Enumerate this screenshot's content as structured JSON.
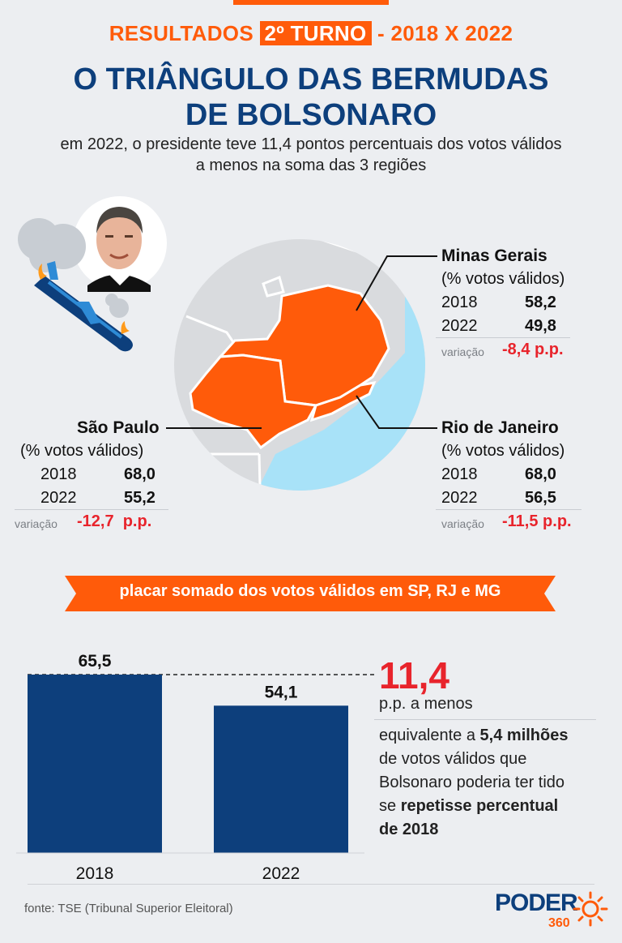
{
  "header": {
    "kicker_pre": "RESULTADOS ",
    "kicker_highlight": "2º TURNO",
    "kicker_post": " - 2018 X 2022",
    "title_line1": "O TRIÂNGULO DAS BERMUDAS",
    "title_line2": "DE BOLSONARO",
    "subtitle_line1": "em 2022, o presidente teve 11,4 pontos percentuais dos votos válidos",
    "subtitle_line2": "a menos na soma das 3 regiões"
  },
  "regions": {
    "mg": {
      "name": "Minas Gerais",
      "sub": "(% votos válidos)",
      "y1_label": "2018",
      "y1_value": "58,2",
      "y2_label": "2022",
      "y2_value": "49,8",
      "var_label": "variação",
      "var_value": "-8,4 p.p."
    },
    "sp": {
      "name": "São Paulo",
      "sub": "(% votos válidos)",
      "y1_label": "2018",
      "y1_value": "68,0",
      "y2_label": "2022",
      "y2_value": "55,2",
      "var_label": "variação",
      "var_value": "-12,7  p.p."
    },
    "rj": {
      "name": "Rio de Janeiro",
      "sub": "(% votos válidos)",
      "y1_label": "2018",
      "y1_value": "68,0",
      "y2_label": "2022",
      "y2_value": "56,5",
      "var_label": "variação",
      "var_value": "-11,5 p.p."
    }
  },
  "banner": {
    "text": "placar somado dos votos válidos em SP, RJ e MG"
  },
  "chart_data": {
    "type": "bar",
    "categories": [
      "2018",
      "2022"
    ],
    "values": [
      65.5,
      54.1
    ],
    "value_labels": [
      "65,5",
      "54,1"
    ],
    "ylim": [
      0,
      65.5
    ],
    "grid": false,
    "color": "#0d3f7c"
  },
  "callout": {
    "big_number": "11,4",
    "unit": "p.p. a menos",
    "note_1": "equivalente a ",
    "note_2": "5,4 milhões",
    "note_3": "de votos válidos que",
    "note_4": "Bolsonaro poderia ter tido",
    "note_5": "se ",
    "note_6": "repetisse percentual",
    "note_7": "de 2018"
  },
  "footer": {
    "source": "fonte: TSE (Tribunal Superior Eleitoral)",
    "logo": "PODER",
    "logo_sub": "360"
  },
  "colors": {
    "accent": "#ff5b0a",
    "navy": "#0d3f7c",
    "red": "#e8242c",
    "ocean": "#a8e2f8"
  }
}
